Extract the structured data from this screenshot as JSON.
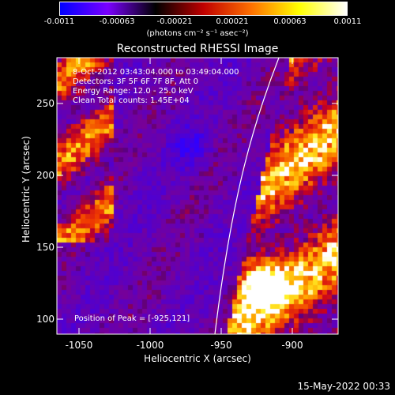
{
  "colorbar": {
    "ticks": [
      "-0.0011",
      "-0.00063",
      "-0.00021",
      "0.00021",
      "0.00063",
      "0.0011"
    ],
    "unit": "(photons cm⁻² s⁻¹ asec⁻²)",
    "stops": [
      "#0000ff",
      "#7a00ff",
      "#000000",
      "#c00000",
      "#ff7000",
      "#ffff00",
      "#ffffff"
    ]
  },
  "plot": {
    "title": "Reconstructed RHESSI Image",
    "info_lines": [
      "8-Oct-2012 03:43:04.000 to 03:49:04.000",
      "Detectors: 3F 5F 6F 7F 8F, Att 0",
      "Energy Range: 12.0 - 25.0 keV",
      "Clean     Total counts: 1.45E+04"
    ],
    "peak_text": "Position of Peak = [-925,121]"
  },
  "axes": {
    "xlabel": "Heliocentric X (arcsec)",
    "ylabel": "Heliocentric Y (arcsec)",
    "xticks": [
      "-1050",
      "-1000",
      "-950",
      "-900"
    ],
    "yticks": [
      "250",
      "200",
      "150",
      "100"
    ]
  },
  "footer": {
    "date": "15-May-2022 00:33"
  }
}
